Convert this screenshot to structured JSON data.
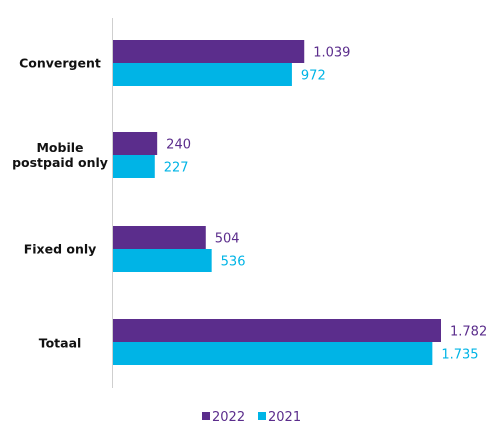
{
  "chart_data": {
    "type": "bar",
    "orientation": "horizontal",
    "title": "",
    "xlabel": "",
    "ylabel": "",
    "categories": [
      [
        "Convergent"
      ],
      [
        "Mobile",
        "postpaid only"
      ],
      [
        "Fixed only"
      ],
      [
        "Totaal"
      ]
    ],
    "series": [
      {
        "name": "2022",
        "color": "#5b2d8c",
        "values": [
          1039,
          240,
          504,
          1782
        ],
        "labels": [
          "1.039",
          "240",
          "504",
          "1.782"
        ]
      },
      {
        "name": "2021",
        "color": "#00b4e6",
        "values": [
          972,
          227,
          536,
          1735
        ],
        "labels": [
          "972",
          "227",
          "536",
          "1.735"
        ]
      }
    ],
    "xlim": [
      0,
      1782
    ],
    "grid": false,
    "legend": "bottom-center"
  }
}
